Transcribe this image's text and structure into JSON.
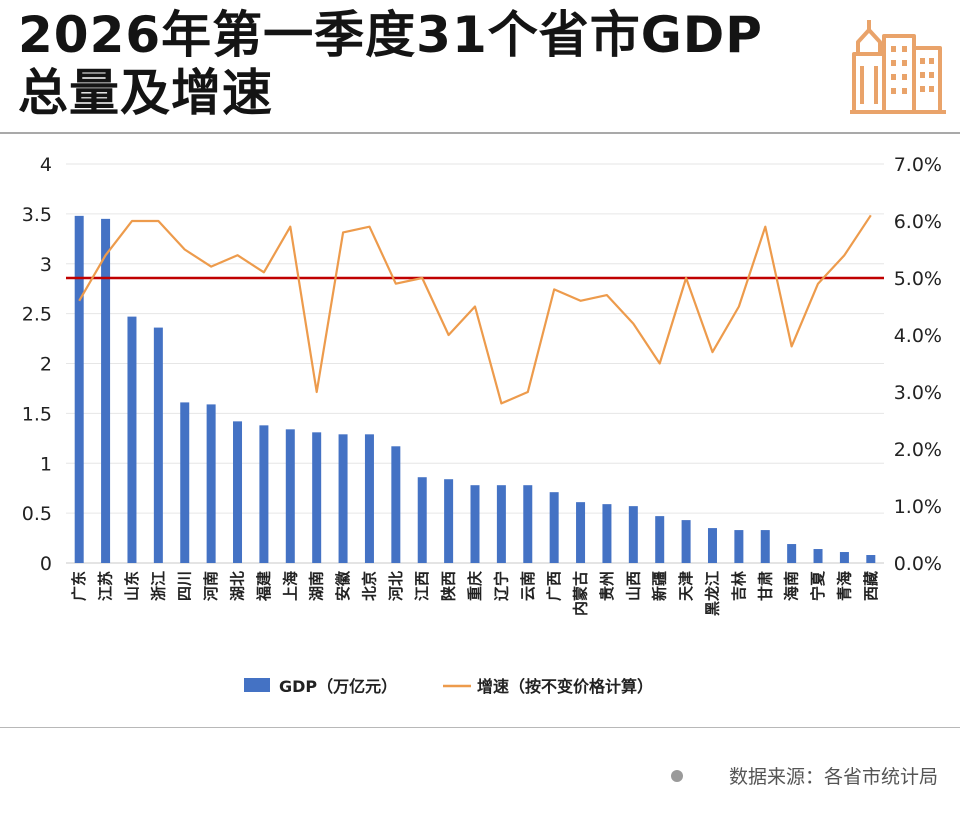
{
  "title": {
    "line1": "2026年第一季度31个省市GDP",
    "line2": "总量及增速"
  },
  "source": "数据来源：各省市统计局",
  "colors": {
    "bar": "#4472C4",
    "line": "#ED9B4C",
    "reference": "#C00000",
    "logo": "#E9A36A"
  },
  "icons": {
    "logo": "city-buildings-icon"
  },
  "chart_data": {
    "type": "bar",
    "categories": [
      "广东",
      "江苏",
      "山东",
      "浙江",
      "四川",
      "河南",
      "湖北",
      "福建",
      "上海",
      "湖南",
      "安徽",
      "北京",
      "河北",
      "江西",
      "陕西",
      "重庆",
      "辽宁",
      "云南",
      "广西",
      "内蒙古",
      "贵州",
      "山西",
      "新疆",
      "天津",
      "黑龙江",
      "吉林",
      "甘肃",
      "海南",
      "宁夏",
      "青海",
      "西藏"
    ],
    "series": [
      {
        "name": "GDP（万亿元）",
        "type": "bar",
        "axis": "left",
        "values": [
          3.48,
          3.45,
          2.47,
          2.36,
          1.61,
          1.59,
          1.42,
          1.38,
          1.34,
          1.31,
          1.29,
          1.29,
          1.17,
          0.86,
          0.84,
          0.78,
          0.78,
          0.78,
          0.71,
          0.61,
          0.59,
          0.57,
          0.47,
          0.43,
          0.35,
          0.33,
          0.33,
          0.19,
          0.14,
          0.11,
          0.08
        ]
      },
      {
        "name": "增速（按不变价格计算）",
        "type": "line",
        "axis": "right",
        "values": [
          4.6,
          5.4,
          6.0,
          6.0,
          5.5,
          5.2,
          5.4,
          5.1,
          5.9,
          3.0,
          5.8,
          5.9,
          4.9,
          5.0,
          4.0,
          4.5,
          2.8,
          3.0,
          4.8,
          4.6,
          4.7,
          4.2,
          3.5,
          5.0,
          3.7,
          4.5,
          5.9,
          3.8,
          4.9,
          5.4,
          6.1
        ]
      }
    ],
    "reference_line": {
      "axis": "right",
      "value": 5.0
    },
    "ylim_left": [
      0,
      4
    ],
    "left_ticks": [
      "0",
      "0.5",
      "1",
      "1.5",
      "2",
      "2.5",
      "3",
      "3.5",
      "4"
    ],
    "ylim_right": [
      0,
      7
    ],
    "right_ticks": [
      "0.0%",
      "1.0%",
      "2.0%",
      "3.0%",
      "4.0%",
      "5.0%",
      "6.0%",
      "7.0%"
    ],
    "grid": true,
    "legend_position": "bottom"
  }
}
